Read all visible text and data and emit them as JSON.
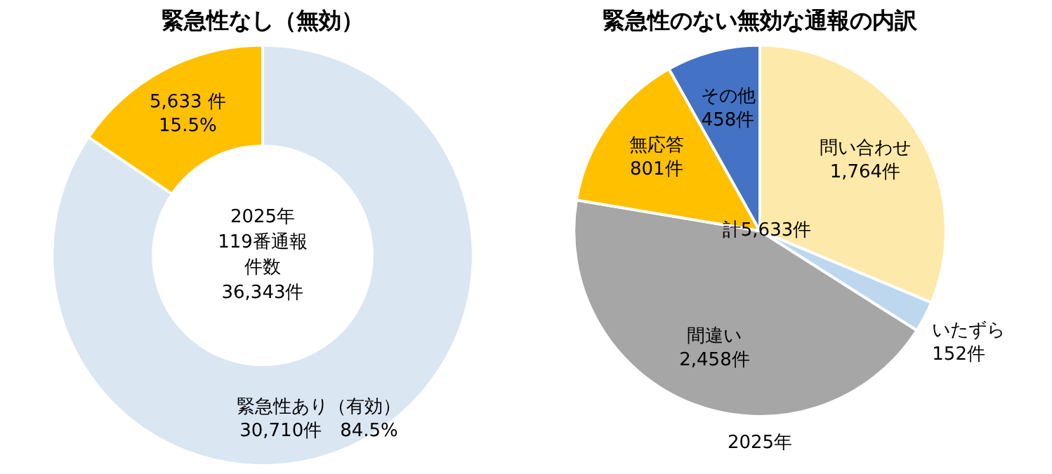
{
  "chart_data": [
    {
      "type": "donut",
      "title": "緊急性なし（無効）",
      "categories": [
        "緊急性あり（有効）",
        null
      ],
      "values": [
        30710,
        5633
      ],
      "colors": [
        "#dae6f2",
        "#ffc000"
      ],
      "value_labels": [
        "30,710件　84.5%",
        "5,633 件\n15.5%"
      ],
      "annotations": [
        "2025年",
        "119番通報",
        "件数",
        "36,343件"
      ],
      "legend": false
    },
    {
      "type": "pie",
      "title": "緊急性のない無効な通報の内訳",
      "categories": [
        "問い合わせ",
        "いたずら",
        "間違い",
        "無応答",
        "その他"
      ],
      "values": [
        1764,
        152,
        2458,
        801,
        458
      ],
      "colors": [
        "#fde9a9",
        "#bdd7ee",
        "#a6a6a6",
        "#ffc000",
        "#4472c4"
      ],
      "value_labels": [
        "1,764件",
        "152件",
        "2,458件",
        "801件",
        "458件"
      ],
      "annotations": [
        "計5,633件",
        "2025年"
      ],
      "legend": false
    }
  ]
}
